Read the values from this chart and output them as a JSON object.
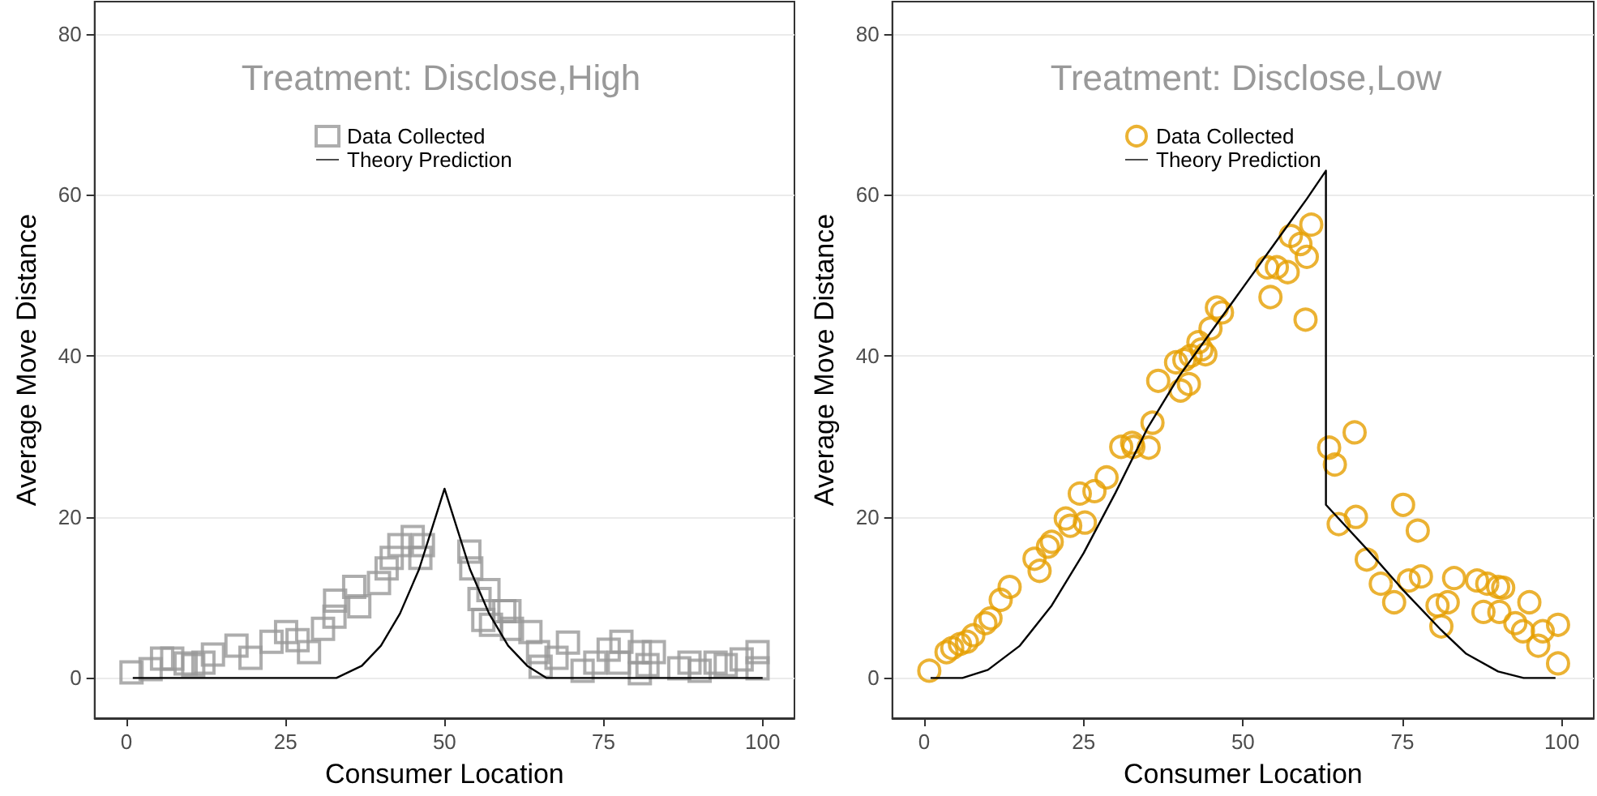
{
  "chart_data": [
    {
      "type": "scatter",
      "title": "Treatment: Disclose,High",
      "xlabel": "Consumer Location",
      "ylabel": "Average Move Distance",
      "xlim": [
        -5,
        105
      ],
      "ylim": [
        -5,
        84
      ],
      "xticks": [
        0,
        25,
        50,
        75,
        100
      ],
      "yticks": [
        0,
        20,
        40,
        60,
        80
      ],
      "grid": "y",
      "legend": "top",
      "marker": "square",
      "series": [
        {
          "name": "Data Collected",
          "type": "scatter",
          "color": "#999999",
          "x": [
            0.8,
            3.8,
            5.6,
            7.2,
            9.3,
            10.5,
            12.1,
            13.6,
            17.3,
            19.5,
            22.8,
            25.1,
            26.9,
            28.7,
            30.9,
            32.7,
            32.8,
            35.8,
            36.6,
            39.7,
            40.9,
            41.7,
            42.9,
            45,
            46.2,
            46.6,
            53.9,
            54.2,
            55.5,
            56.9,
            56.1,
            57.3,
            59.4,
            60.2,
            60.6,
            63.5,
            64.7,
            65.1,
            67.6,
            69.4,
            71.7,
            73.7,
            75.8,
            77.8,
            77.4,
            80.7,
            80.7,
            82.9,
            81.9,
            86.9,
            88.5,
            90.1,
            92.6,
            94.2,
            96.7,
            99.2,
            99.2
          ],
          "values": [
            0.7,
            1.1,
            2.4,
            2.4,
            1.8,
            1.6,
            1.9,
            2.9,
            4.0,
            2.5,
            4.5,
            5.7,
            4.7,
            3.2,
            6.1,
            7.6,
            9.6,
            11.3,
            8.9,
            11.8,
            13.6,
            14.9,
            16.5,
            17.5,
            14.9,
            16.5,
            15.7,
            13.6,
            9.8,
            10.9,
            7.2,
            6.6,
            8.3,
            8.3,
            6.1,
            5.7,
            3.2,
            1.4,
            2.5,
            4.4,
            0.9,
            1.9,
            3.5,
            4.5,
            1.9,
            3.2,
            0.6,
            3.2,
            1.6,
            1.2,
            1.9,
            0.9,
            1.9,
            1.6,
            2.3,
            3.2,
            1.2
          ]
        },
        {
          "name": "Theory Prediction",
          "type": "line",
          "color": "#000000",
          "marker": "none",
          "x": [
            1,
            33,
            37,
            40,
            43,
            46,
            50,
            54,
            57,
            60,
            63,
            66,
            100
          ],
          "values": [
            0,
            0,
            1.5,
            4,
            8,
            13.5,
            23.5,
            13.5,
            8,
            4,
            1.5,
            0,
            0
          ]
        }
      ]
    },
    {
      "type": "scatter",
      "title": "Treatment: Disclose,Low",
      "xlabel": "Consumer Location",
      "ylabel": "Average Move Distance",
      "xlim": [
        -5,
        105
      ],
      "ylim": [
        -5,
        84
      ],
      "xticks": [
        0,
        25,
        50,
        75,
        100
      ],
      "yticks": [
        0,
        20,
        40,
        60,
        80
      ],
      "grid": "y",
      "legend": "top",
      "marker": "circle",
      "series": [
        {
          "name": "Data Collected",
          "type": "scatter",
          "color": "#e69f00",
          "x": [
            0.8,
            3.5,
            4.4,
            5.6,
            6.7,
            7.7,
            9.6,
            10.4,
            12.0,
            13.4,
            17.3,
            18.1,
            19.4,
            20,
            22.2,
            22.9,
            25.2,
            24.4,
            26.7,
            28.6,
            30.9,
            32.6,
            32.8,
            35.2,
            35.8,
            36.7,
            39.5,
            40.2,
            40.8,
            41.5,
            41.8,
            43.0,
            43.5,
            44.1,
            44.9,
            45.9,
            46.7,
            53.8,
            54.3,
            55.3,
            57.0,
            57.5,
            59,
            60,
            60.7,
            59.8,
            67.5,
            63.5,
            64.4,
            65.0,
            67.7,
            75.1,
            77.4,
            69.4,
            71.6,
            73.7,
            76.0,
            77.9,
            80.5,
            82.1,
            81.1,
            83.1,
            86.7,
            88.3,
            90.0,
            90.8,
            87.7,
            90.2,
            94.9,
            92.7,
            93.9,
            96.3,
            97.0,
            99.4,
            99.4
          ],
          "values": [
            0.9,
            3.2,
            3.7,
            4.2,
            4.5,
            5.3,
            6.8,
            7.4,
            9.7,
            11.3,
            14.8,
            13.3,
            16.3,
            16.9,
            19.8,
            18.9,
            19.3,
            22.9,
            23.2,
            24.9,
            28.7,
            29.2,
            28.7,
            28.6,
            31.7,
            36.9,
            39.2,
            35.7,
            39.5,
            36.5,
            40.0,
            41.7,
            40.8,
            40.2,
            43.4,
            46.0,
            45.4,
            51,
            47.3,
            51,
            50.4,
            54.9,
            53.9,
            52.3,
            56.3,
            44.5,
            30.5,
            28.6,
            26.5,
            19.1,
            20.0,
            21.5,
            18.3,
            14.7,
            11.7,
            9.4,
            12.1,
            12.6,
            9.0,
            9.4,
            6.4,
            12.4,
            12.1,
            11.7,
            11.3,
            11.2,
            8.2,
            8.2,
            9.4,
            6.8,
            5.8,
            4.0,
            5.8,
            6.6,
            1.8
          ]
        },
        {
          "name": "Theory Prediction",
          "type": "line",
          "color": "#000000",
          "marker": "none",
          "x": [
            1,
            6,
            10,
            15,
            20,
            25,
            30,
            35,
            40,
            45,
            50,
            55,
            60,
            63,
            63,
            70,
            75,
            81,
            85,
            90,
            94,
            99
          ],
          "values": [
            0,
            0,
            1,
            4,
            9,
            15.5,
            23,
            31,
            37.5,
            43,
            48.5,
            54,
            59.5,
            63,
            21.5,
            15.5,
            11,
            6,
            3,
            0.8,
            0,
            0
          ]
        }
      ]
    }
  ]
}
